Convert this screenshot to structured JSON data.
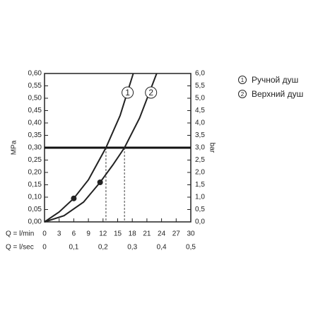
{
  "chart_data": {
    "type": "line",
    "xlabel": "Q = l/min",
    "x2label": "Q = l/sec",
    "ylabel": "MPa",
    "y2label": "bar",
    "xlim": [
      0,
      30
    ],
    "xticks": [
      0,
      3,
      6,
      9,
      12,
      15,
      18,
      21,
      24,
      27,
      30
    ],
    "x2lim": [
      0,
      0.5
    ],
    "x2ticks": [
      0,
      {
        "value": 0.1,
        "label": "0,1"
      },
      {
        "value": 0.2,
        "label": "0,2"
      },
      {
        "value": 0.3,
        "label": "0,3"
      },
      {
        "value": 0.4,
        "label": "0,4"
      },
      {
        "value": 0.5,
        "label": "0,5"
      }
    ],
    "ylim": [
      0,
      0.6
    ],
    "yticks": [
      {
        "value": 0,
        "label": "0,00"
      },
      {
        "value": 0.05,
        "label": "0,05"
      },
      {
        "value": 0.1,
        "label": "0,10"
      },
      {
        "value": 0.15,
        "label": "0,15"
      },
      {
        "value": 0.2,
        "label": "0,20"
      },
      {
        "value": 0.25,
        "label": "0,25"
      },
      {
        "value": 0.3,
        "label": "0,30"
      },
      {
        "value": 0.35,
        "label": "0,35"
      },
      {
        "value": 0.4,
        "label": "0,40"
      },
      {
        "value": 0.45,
        "label": "0,45"
      },
      {
        "value": 0.5,
        "label": "0,50"
      },
      {
        "value": 0.55,
        "label": "0,55"
      },
      {
        "value": 0.6,
        "label": "0,60"
      }
    ],
    "y2lim": [
      0,
      6
    ],
    "y2ticks": [
      {
        "value": 0,
        "label": "0,0"
      },
      {
        "value": 0.5,
        "label": "0,5"
      },
      {
        "value": 1,
        "label": "1,0"
      },
      {
        "value": 1.5,
        "label": "1,5"
      },
      {
        "value": 2,
        "label": "2,0"
      },
      {
        "value": 2.5,
        "label": "2,5"
      },
      {
        "value": 3,
        "label": "3,0"
      },
      {
        "value": 3.5,
        "label": "3,5"
      },
      {
        "value": 4,
        "label": "4,0"
      },
      {
        "value": 4.5,
        "label": "4,5"
      },
      {
        "value": 5,
        "label": "5,0"
      },
      {
        "value": 5.5,
        "label": "5,5"
      },
      {
        "value": 6,
        "label": "6,0"
      }
    ],
    "reference_y": 0.3,
    "series": [
      {
        "name": "Ручной душ",
        "label": "1",
        "color": "#222222",
        "x": [
          0,
          3,
          6,
          9,
          12.6,
          15.5,
          18.2
        ],
        "values": [
          0,
          0.04,
          0.095,
          0.17,
          0.3,
          0.43,
          0.6
        ],
        "point": {
          "x": 6,
          "y": 0.095
        },
        "reference_x": 12.6
      },
      {
        "name": "Верхний душ",
        "label": "2",
        "color": "#222222",
        "x": [
          0,
          4,
          8,
          11.4,
          14,
          16.4,
          19.5,
          23
        ],
        "values": [
          0,
          0.025,
          0.08,
          0.16,
          0.23,
          0.3,
          0.42,
          0.6
        ],
        "point": {
          "x": 11.4,
          "y": 0.16
        },
        "reference_x": 16.4
      }
    ]
  }
}
